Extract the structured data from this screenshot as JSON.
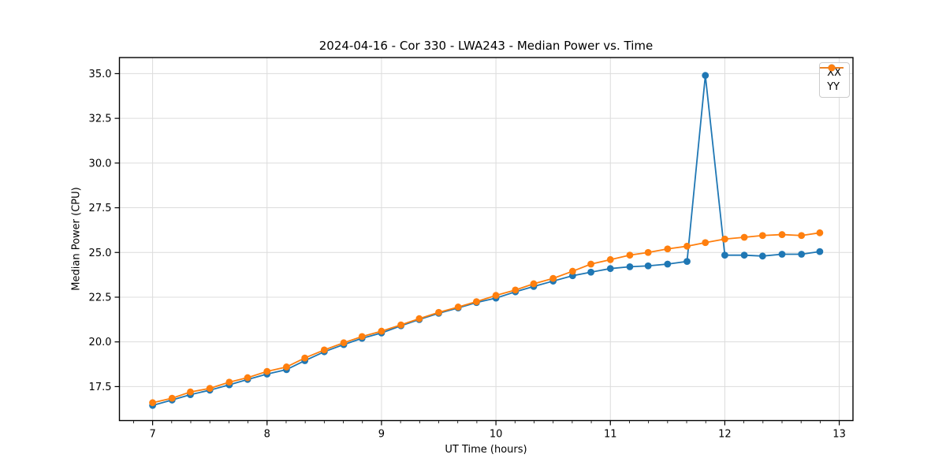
{
  "chart_data": {
    "type": "line",
    "title": "2024-04-16 - Cor 330 - LWA243 - Median Power vs. Time",
    "xlabel": "UT Time (hours)",
    "ylabel": "Median Power (CPU)",
    "xlim": [
      6.71,
      13.12
    ],
    "ylim": [
      15.6,
      35.9
    ],
    "xticks": [
      7,
      8,
      9,
      10,
      11,
      12,
      13
    ],
    "xtick_labels": [
      "7",
      "8",
      "9",
      "10",
      "11",
      "12",
      "13"
    ],
    "x_minor_interval": 0.166667,
    "yticks": [
      17.5,
      20.0,
      22.5,
      25.0,
      27.5,
      30.0,
      32.5,
      35.0
    ],
    "ytick_labels": [
      "17.5",
      "20.0",
      "22.5",
      "25.0",
      "27.5",
      "30.0",
      "32.5",
      "35.0"
    ],
    "grid": true,
    "legend_position": "top-right",
    "x": [
      7.0,
      7.17,
      7.33,
      7.5,
      7.67,
      7.83,
      8.0,
      8.17,
      8.33,
      8.5,
      8.67,
      8.83,
      9.0,
      9.17,
      9.33,
      9.5,
      9.67,
      9.83,
      10.0,
      10.17,
      10.33,
      10.5,
      10.67,
      10.83,
      11.0,
      11.17,
      11.33,
      11.5,
      11.67,
      11.83,
      12.0,
      12.17,
      12.33,
      12.5,
      12.67,
      12.83
    ],
    "series": [
      {
        "name": "XX",
        "color": "#1f77b4",
        "values": [
          16.45,
          16.75,
          17.05,
          17.3,
          17.6,
          17.9,
          18.2,
          18.45,
          18.95,
          19.45,
          19.85,
          20.2,
          20.5,
          20.9,
          21.25,
          21.6,
          21.9,
          22.2,
          22.45,
          22.8,
          23.1,
          23.4,
          23.7,
          23.9,
          24.1,
          24.2,
          24.25,
          24.35,
          24.5,
          34.9,
          24.85,
          24.85,
          24.8,
          24.9,
          24.9,
          25.05
        ]
      },
      {
        "name": "YY",
        "color": "#ff7f0e",
        "values": [
          16.6,
          16.85,
          17.2,
          17.4,
          17.75,
          18.0,
          18.35,
          18.6,
          19.1,
          19.55,
          19.95,
          20.3,
          20.6,
          20.95,
          21.3,
          21.65,
          21.95,
          22.25,
          22.6,
          22.9,
          23.25,
          23.55,
          23.95,
          24.35,
          24.6,
          24.85,
          25.0,
          25.2,
          25.35,
          25.55,
          25.75,
          25.85,
          25.95,
          26.0,
          25.95,
          26.1
        ]
      }
    ],
    "colors": {
      "background": "#ffffff",
      "grid": "#dcdcdc",
      "spine": "#000000",
      "text": "#000000"
    }
  }
}
